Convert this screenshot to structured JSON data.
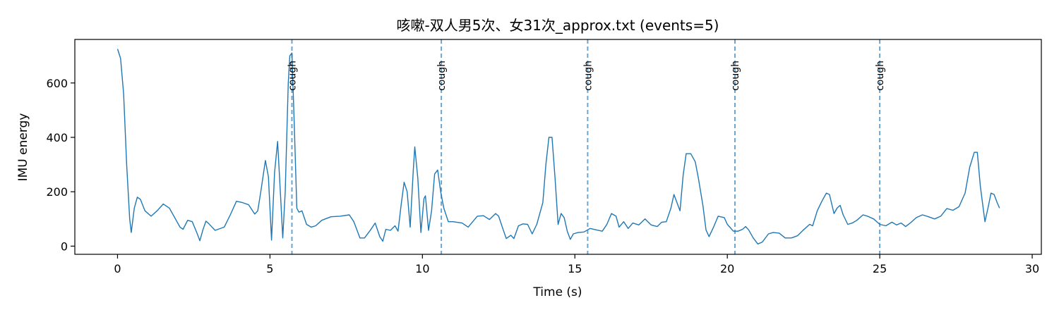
{
  "chart_data": {
    "type": "line",
    "title": "咳嗽-双人男5次、女31次_approx.txt  (events=5)",
    "xlabel": "Time (s)",
    "ylabel": "IMU energy",
    "xlim": [
      -1.4,
      30.3
    ],
    "ylim": [
      -30,
      760
    ],
    "xticks": [
      0,
      5,
      10,
      15,
      20,
      25,
      30
    ],
    "yticks": [
      0,
      200,
      400,
      600
    ],
    "line_color": "#1f77b4",
    "event_color": "#1f77b4",
    "grid": false,
    "series": [
      {
        "points": [
          [
            0.0,
            725
          ],
          [
            0.1,
            690
          ],
          [
            0.2,
            560
          ],
          [
            0.3,
            300
          ],
          [
            0.4,
            100
          ],
          [
            0.45,
            50
          ],
          [
            0.55,
            140
          ],
          [
            0.65,
            180
          ],
          [
            0.75,
            172
          ],
          [
            0.9,
            130
          ],
          [
            1.1,
            110
          ],
          [
            1.3,
            130
          ],
          [
            1.5,
            155
          ],
          [
            1.7,
            140
          ],
          [
            1.9,
            100
          ],
          [
            2.05,
            70
          ],
          [
            2.15,
            62
          ],
          [
            2.3,
            95
          ],
          [
            2.45,
            90
          ],
          [
            2.6,
            50
          ],
          [
            2.7,
            20
          ],
          [
            2.8,
            60
          ],
          [
            2.9,
            92
          ],
          [
            3.0,
            82
          ],
          [
            3.2,
            58
          ],
          [
            3.5,
            70
          ],
          [
            3.7,
            115
          ],
          [
            3.9,
            165
          ],
          [
            4.1,
            160
          ],
          [
            4.3,
            152
          ],
          [
            4.5,
            118
          ],
          [
            4.6,
            130
          ],
          [
            4.7,
            200
          ],
          [
            4.85,
            315
          ],
          [
            4.95,
            255
          ],
          [
            5.05,
            22
          ],
          [
            5.15,
            270
          ],
          [
            5.25,
            385
          ],
          [
            5.35,
            180
          ],
          [
            5.42,
            30
          ],
          [
            5.5,
            200
          ],
          [
            5.6,
            600
          ],
          [
            5.65,
            700
          ],
          [
            5.72,
            710
          ],
          [
            5.8,
            440
          ],
          [
            5.88,
            140
          ],
          [
            5.95,
            125
          ],
          [
            6.05,
            130
          ],
          [
            6.2,
            80
          ],
          [
            6.35,
            70
          ],
          [
            6.5,
            75
          ],
          [
            6.7,
            95
          ],
          [
            7.0,
            108
          ],
          [
            7.3,
            110
          ],
          [
            7.6,
            115
          ],
          [
            7.75,
            90
          ],
          [
            7.95,
            30
          ],
          [
            8.1,
            30
          ],
          [
            8.3,
            60
          ],
          [
            8.45,
            85
          ],
          [
            8.6,
            35
          ],
          [
            8.7,
            18
          ],
          [
            8.8,
            62
          ],
          [
            8.95,
            58
          ],
          [
            9.1,
            75
          ],
          [
            9.2,
            55
          ],
          [
            9.3,
            150
          ],
          [
            9.4,
            235
          ],
          [
            9.5,
            200
          ],
          [
            9.6,
            70
          ],
          [
            9.7,
            280
          ],
          [
            9.75,
            365
          ],
          [
            9.85,
            250
          ],
          [
            9.95,
            50
          ],
          [
            10.05,
            175
          ],
          [
            10.1,
            185
          ],
          [
            10.2,
            58
          ],
          [
            10.3,
            130
          ],
          [
            10.4,
            265
          ],
          [
            10.5,
            280
          ],
          [
            10.6,
            200
          ],
          [
            10.7,
            140
          ],
          [
            10.85,
            90
          ],
          [
            11.0,
            90
          ],
          [
            11.3,
            85
          ],
          [
            11.5,
            70
          ],
          [
            11.8,
            110
          ],
          [
            12.0,
            112
          ],
          [
            12.2,
            98
          ],
          [
            12.4,
            120
          ],
          [
            12.5,
            110
          ],
          [
            12.65,
            60
          ],
          [
            12.75,
            28
          ],
          [
            12.9,
            40
          ],
          [
            13.0,
            28
          ],
          [
            13.15,
            75
          ],
          [
            13.3,
            82
          ],
          [
            13.45,
            80
          ],
          [
            13.6,
            45
          ],
          [
            13.75,
            80
          ],
          [
            13.95,
            160
          ],
          [
            14.05,
            300
          ],
          [
            14.15,
            400
          ],
          [
            14.25,
            400
          ],
          [
            14.35,
            250
          ],
          [
            14.45,
            80
          ],
          [
            14.55,
            120
          ],
          [
            14.65,
            105
          ],
          [
            14.75,
            55
          ],
          [
            14.85,
            25
          ],
          [
            14.95,
            45
          ],
          [
            15.1,
            50
          ],
          [
            15.3,
            52
          ],
          [
            15.5,
            65
          ],
          [
            15.7,
            60
          ],
          [
            15.9,
            55
          ],
          [
            16.05,
            80
          ],
          [
            16.2,
            120
          ],
          [
            16.35,
            110
          ],
          [
            16.45,
            70
          ],
          [
            16.6,
            90
          ],
          [
            16.75,
            65
          ],
          [
            16.9,
            85
          ],
          [
            17.1,
            78
          ],
          [
            17.3,
            100
          ],
          [
            17.5,
            78
          ],
          [
            17.7,
            72
          ],
          [
            17.85,
            88
          ],
          [
            18.0,
            90
          ],
          [
            18.15,
            140
          ],
          [
            18.25,
            190
          ],
          [
            18.35,
            160
          ],
          [
            18.45,
            130
          ],
          [
            18.55,
            260
          ],
          [
            18.65,
            340
          ],
          [
            18.8,
            340
          ],
          [
            18.95,
            310
          ],
          [
            19.05,
            250
          ],
          [
            19.2,
            150
          ],
          [
            19.3,
            60
          ],
          [
            19.4,
            35
          ],
          [
            19.55,
            70
          ],
          [
            19.7,
            110
          ],
          [
            19.9,
            105
          ],
          [
            20.0,
            80
          ],
          [
            20.2,
            55
          ],
          [
            20.35,
            55
          ],
          [
            20.5,
            62
          ],
          [
            20.6,
            72
          ],
          [
            20.7,
            60
          ],
          [
            20.85,
            30
          ],
          [
            21.0,
            8
          ],
          [
            21.15,
            15
          ],
          [
            21.35,
            45
          ],
          [
            21.5,
            50
          ],
          [
            21.7,
            48
          ],
          [
            21.9,
            30
          ],
          [
            22.1,
            30
          ],
          [
            22.3,
            38
          ],
          [
            22.5,
            60
          ],
          [
            22.7,
            80
          ],
          [
            22.8,
            75
          ],
          [
            22.95,
            130
          ],
          [
            23.1,
            165
          ],
          [
            23.25,
            195
          ],
          [
            23.35,
            190
          ],
          [
            23.5,
            120
          ],
          [
            23.6,
            140
          ],
          [
            23.7,
            150
          ],
          [
            23.8,
            115
          ],
          [
            23.95,
            80
          ],
          [
            24.1,
            85
          ],
          [
            24.25,
            95
          ],
          [
            24.45,
            115
          ],
          [
            24.6,
            110
          ],
          [
            24.8,
            100
          ],
          [
            25.0,
            80
          ],
          [
            25.2,
            75
          ],
          [
            25.4,
            88
          ],
          [
            25.55,
            78
          ],
          [
            25.7,
            85
          ],
          [
            25.85,
            72
          ],
          [
            26.0,
            85
          ],
          [
            26.2,
            105
          ],
          [
            26.4,
            115
          ],
          [
            26.6,
            108
          ],
          [
            26.8,
            100
          ],
          [
            27.0,
            110
          ],
          [
            27.2,
            138
          ],
          [
            27.4,
            132
          ],
          [
            27.6,
            145
          ],
          [
            27.8,
            195
          ],
          [
            27.95,
            290
          ],
          [
            28.1,
            345
          ],
          [
            28.2,
            345
          ],
          [
            28.3,
            220
          ],
          [
            28.45,
            90
          ],
          [
            28.55,
            140
          ],
          [
            28.65,
            195
          ],
          [
            28.75,
            190
          ],
          [
            28.85,
            160
          ],
          [
            28.93,
            140
          ]
        ]
      }
    ],
    "events": [
      {
        "x": 5.72,
        "label": "cough"
      },
      {
        "x": 10.62,
        "label": "cough"
      },
      {
        "x": 15.42,
        "label": "cough"
      },
      {
        "x": 20.25,
        "label": "cough"
      },
      {
        "x": 25.0,
        "label": "cough"
      }
    ]
  }
}
